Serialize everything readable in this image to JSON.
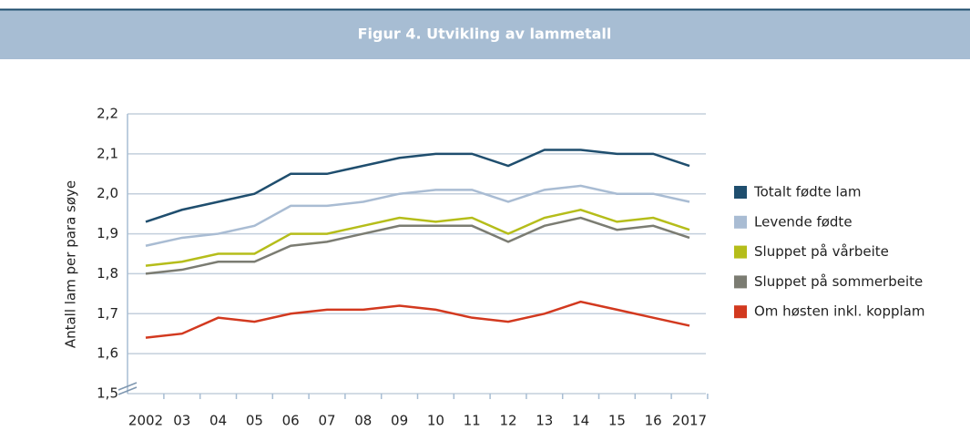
{
  "chart_data": {
    "type": "line",
    "title": "Figur 4. Utvikling av lammetall",
    "y_label": "Antall lam per para søye",
    "categories": [
      "2002",
      "03",
      "04",
      "05",
      "06",
      "07",
      "08",
      "09",
      "10",
      "11",
      "12",
      "13",
      "14",
      "15",
      "16",
      "2017"
    ],
    "series": [
      {
        "name": "Totalt fødte lam",
        "color": "#1f4e6e",
        "values": [
          1.93,
          1.96,
          1.98,
          2.0,
          2.05,
          2.05,
          2.07,
          2.09,
          2.1,
          2.1,
          2.07,
          2.11,
          2.11,
          2.1,
          2.1,
          2.07
        ]
      },
      {
        "name": "Levende fødte",
        "color": "#a9bcd3",
        "values": [
          1.87,
          1.89,
          1.9,
          1.92,
          1.97,
          1.97,
          1.98,
          2.0,
          2.01,
          2.01,
          1.98,
          2.01,
          2.02,
          2.0,
          2.0,
          1.98
        ]
      },
      {
        "name": "Sluppet på vårbeite",
        "color": "#b5bd1a",
        "values": [
          1.82,
          1.83,
          1.85,
          1.85,
          1.9,
          1.9,
          1.92,
          1.94,
          1.93,
          1.94,
          1.9,
          1.94,
          1.96,
          1.93,
          1.94,
          1.91
        ]
      },
      {
        "name": "Sluppet på sommerbeite",
        "color": "#7b7c72",
        "values": [
          1.8,
          1.81,
          1.83,
          1.83,
          1.87,
          1.88,
          1.9,
          1.92,
          1.92,
          1.92,
          1.88,
          1.92,
          1.94,
          1.91,
          1.92,
          1.89
        ]
      },
      {
        "name": "Om høsten inkl. kopplam",
        "color": "#d2391f",
        "values": [
          1.64,
          1.65,
          1.69,
          1.68,
          1.7,
          1.71,
          1.71,
          1.72,
          1.71,
          1.69,
          1.68,
          1.7,
          1.73,
          1.71,
          1.69,
          1.67
        ]
      }
    ],
    "ylim": [
      1.5,
      2.2
    ],
    "yticks": [
      {
        "value": 1.5,
        "label": "1,5"
      },
      {
        "value": 1.6,
        "label": "1,6"
      },
      {
        "value": 1.7,
        "label": "1,7"
      },
      {
        "value": 1.8,
        "label": "1,8"
      },
      {
        "value": 1.9,
        "label": "1,9"
      },
      {
        "value": 2.0,
        "label": "2,0"
      },
      {
        "value": 2.1,
        "label": "2,1"
      },
      {
        "value": 2.2,
        "label": "2,2"
      }
    ],
    "grid": true,
    "legend": "right"
  }
}
